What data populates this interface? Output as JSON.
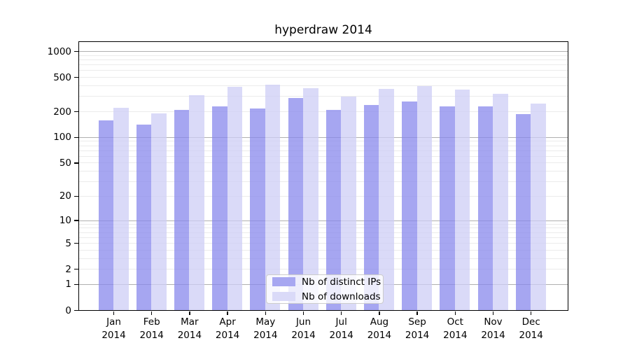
{
  "figure": {
    "title": "hyperdraw 2014"
  },
  "colors": {
    "ips_bar": "#8888ec",
    "downloads_bar": "#cdcdf6",
    "bar_alpha": 0.75,
    "ips_legend_swatch": "#a7a7f1",
    "downloads_legend_swatch": "#dadaf8",
    "major_gridline": "#b0b0b0",
    "minor_gridline": "#ebebeb",
    "axis": "#000000",
    "background": "#ffffff"
  },
  "chart_data": {
    "type": "bar",
    "title": "hyperdraw 2014",
    "categories": [
      "Jan",
      "Feb",
      "Mar",
      "Apr",
      "May",
      "Jun",
      "Jul",
      "Aug",
      "Sep",
      "Oct",
      "Nov",
      "Dec"
    ],
    "x_tick_year": "2014",
    "series": [
      {
        "name": "Nb of distinct IPs",
        "values": [
          158,
          140,
          207,
          228,
          215,
          288,
          208,
          235,
          262,
          227,
          228,
          187
        ]
      },
      {
        "name": "Nb of downloads",
        "values": [
          218,
          190,
          310,
          388,
          410,
          370,
          298,
          365,
          390,
          357,
          318,
          247
        ]
      }
    ],
    "y_scale": "log1p",
    "y_ticks": [
      0,
      1,
      2,
      5,
      10,
      20,
      50,
      100,
      200,
      500,
      1000
    ],
    "y_major_gridlines": [
      1,
      10,
      100,
      1000
    ],
    "ylim": [
      0,
      1276
    ],
    "grid": "on",
    "legend_position": "lower center"
  }
}
